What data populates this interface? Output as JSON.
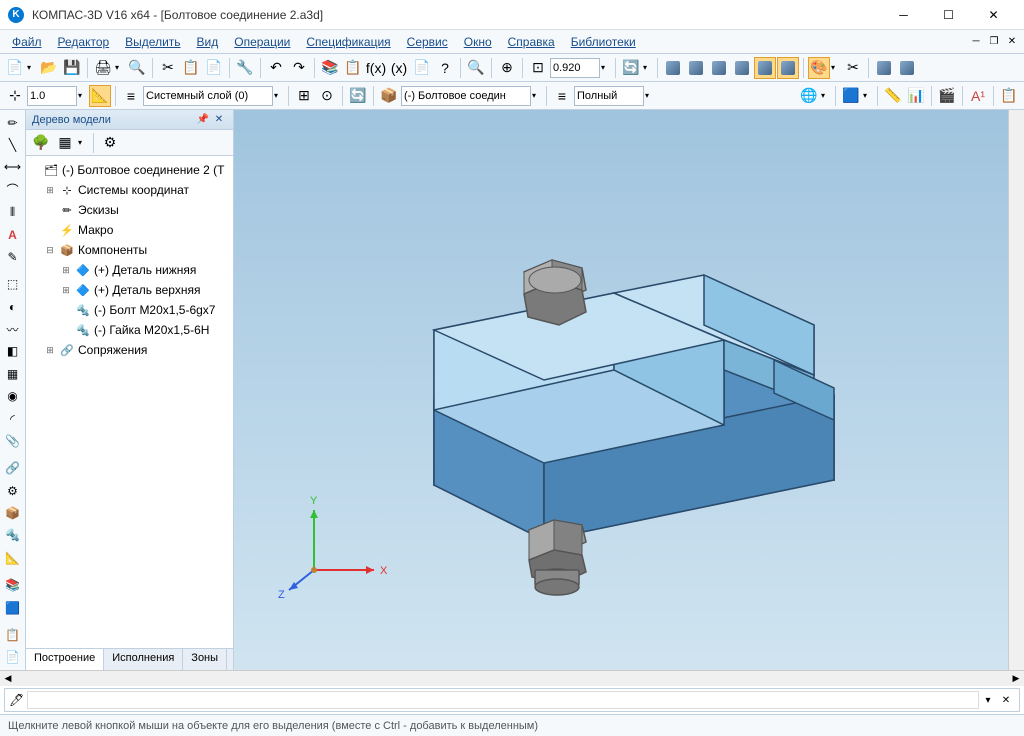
{
  "title": "КОМПАС-3D V16  x64 - [Болтовое соединение 2.a3d]",
  "menu": [
    "Файл",
    "Редактор",
    "Выделить",
    "Вид",
    "Операции",
    "Спецификация",
    "Сервис",
    "Окно",
    "Справка",
    "Библиотеки"
  ],
  "toolbar1": {
    "zoom_value": "0.920",
    "layer_value": "1.0",
    "layer_name": "Системный слой (0)",
    "component": "(-) Болтовое соедин",
    "style": "Полный"
  },
  "panel": {
    "title": "Дерево модели",
    "tabs": [
      "Построение",
      "Исполнения",
      "Зоны"
    ]
  },
  "tree": {
    "root": "(-) Болтовое соединение 2 (Т",
    "nodes": [
      {
        "label": "Системы координат",
        "icon": "coord",
        "indent": 1,
        "expand": "+"
      },
      {
        "label": "Эскизы",
        "icon": "sketch",
        "indent": 1,
        "expand": ""
      },
      {
        "label": "Макро",
        "icon": "macro",
        "indent": 1,
        "expand": ""
      },
      {
        "label": "Компоненты",
        "icon": "comp",
        "indent": 1,
        "expand": "−"
      },
      {
        "label": "(+) Деталь нижняя",
        "icon": "part",
        "indent": 2,
        "expand": "+"
      },
      {
        "label": "(+) Деталь верхняя",
        "icon": "part",
        "indent": 2,
        "expand": "+"
      },
      {
        "label": "(-) Болт М20х1,5-6gx7",
        "icon": "stdpart",
        "indent": 2,
        "expand": ""
      },
      {
        "label": "(-) Гайка М20х1,5-6H",
        "icon": "stdpart",
        "indent": 2,
        "expand": ""
      },
      {
        "label": "Сопряжения",
        "icon": "mate",
        "indent": 1,
        "expand": "+"
      }
    ]
  },
  "status": "Щелкните левой кнопкой мыши на объекте для его выделения (вместе с Ctrl - добавить к выделенным)",
  "viewport": {
    "bg_top": "#a0c4de",
    "bg_bottom": "#d0e4f0",
    "part_light": "#9fc8e8",
    "part_mid": "#7bb0d8",
    "part_dark": "#5a98c8",
    "bolt_light": "#a8a8a8",
    "bolt_mid": "#888888",
    "bolt_dark": "#686868",
    "edge": "#2a4a6a",
    "axis_x": "#e03030",
    "axis_y": "#30c030",
    "axis_z": "#3060e0",
    "axis_labels": {
      "x": "X",
      "y": "Y",
      "z": "Z"
    }
  }
}
